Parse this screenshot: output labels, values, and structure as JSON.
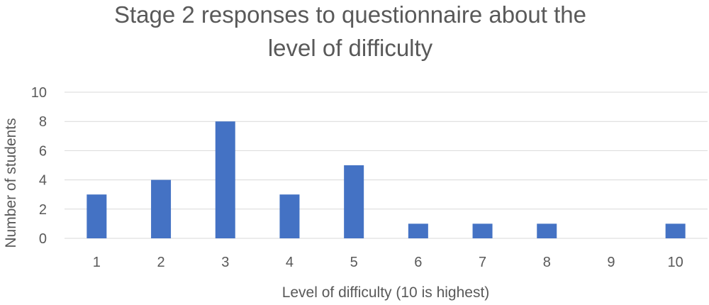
{
  "chart_data": {
    "type": "bar",
    "title_lines": [
      "Stage 2 responses to questionnaire about the",
      "level of difficulty"
    ],
    "xlabel": "Level of difficulty (10 is highest)",
    "ylabel": "Number of students",
    "categories": [
      "1",
      "2",
      "3",
      "4",
      "5",
      "6",
      "7",
      "8",
      "9",
      "10"
    ],
    "values": [
      3,
      4,
      8,
      3,
      5,
      1,
      1,
      1,
      0,
      1
    ],
    "ylim": [
      0,
      10
    ],
    "yticks": [
      "0",
      "2",
      "4",
      "6",
      "8",
      "10"
    ],
    "grid": true,
    "legend": "none",
    "bar_color": "#4472c4"
  }
}
